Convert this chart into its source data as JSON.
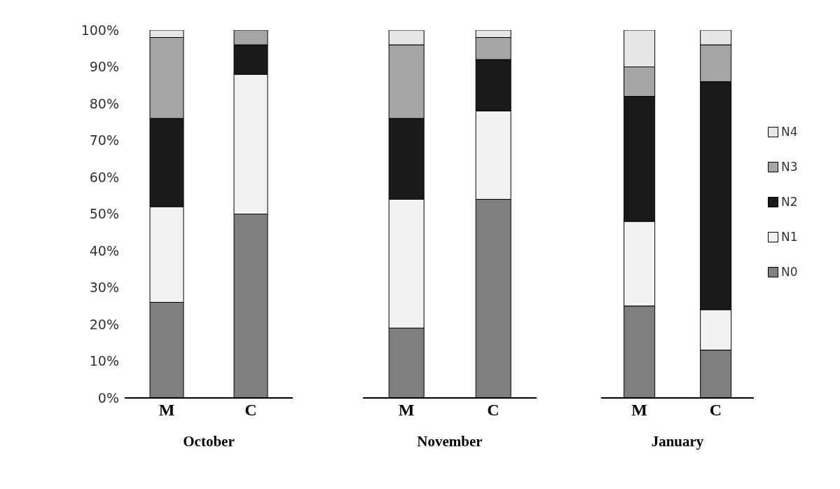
{
  "chart_data": [
    {
      "type": "bar",
      "stacked": true,
      "xlabel": "October",
      "categories": [
        "M",
        "C"
      ],
      "ylim": [
        0,
        100
      ],
      "yticks": [
        {
          "value": 0,
          "label": "0%"
        },
        {
          "value": 10,
          "label": "10%"
        },
        {
          "value": 20,
          "label": "20%"
        },
        {
          "value": 30,
          "label": "30%"
        },
        {
          "value": 40,
          "label": "40%"
        },
        {
          "value": 50,
          "label": "50%"
        },
        {
          "value": 60,
          "label": "60%"
        },
        {
          "value": 70,
          "label": "70%"
        },
        {
          "value": 80,
          "label": "80%"
        },
        {
          "value": 90,
          "label": "90%"
        },
        {
          "value": 100,
          "label": "100%"
        }
      ],
      "grid": false,
      "legend": false,
      "series": [
        {
          "color": "#7f7f7f",
          "values": [
            26,
            50
          ]
        },
        {
          "color": "#f2f2f2",
          "values": [
            26,
            38
          ]
        },
        {
          "color": "#1a1a1a",
          "values": [
            24,
            8
          ]
        },
        {
          "color": "#a6a6a6",
          "values": [
            22,
            4
          ]
        },
        {
          "color": "#e6e6e6",
          "values": [
            2,
            0
          ]
        }
      ]
    },
    {
      "type": "bar",
      "stacked": true,
      "xlabel": "November",
      "categories": [
        "M",
        "C"
      ],
      "ylim": [
        0,
        100
      ],
      "tick_labels": "x",
      "grid": false,
      "legend": false,
      "series": [
        {
          "color": "#7f7f7f",
          "values": [
            19,
            54
          ]
        },
        {
          "color": "#f2f2f2",
          "values": [
            35,
            24
          ]
        },
        {
          "color": "#1a1a1a",
          "values": [
            22,
            14
          ]
        },
        {
          "color": "#a6a6a6",
          "values": [
            20,
            6
          ]
        },
        {
          "color": "#e6e6e6",
          "values": [
            4,
            2
          ]
        }
      ]
    },
    {
      "type": "bar",
      "stacked": true,
      "xlabel": "January",
      "categories": [
        "M",
        "C"
      ],
      "ylim": [
        0,
        100
      ],
      "tick_labels": "x",
      "grid": false,
      "legend": "right",
      "series": [
        {
          "name": "N0",
          "color": "#7f7f7f",
          "values": [
            25,
            13
          ]
        },
        {
          "name": "N1",
          "color": "#f2f2f2",
          "values": [
            23,
            11
          ]
        },
        {
          "name": "N2",
          "color": "#1a1a1a",
          "values": [
            34,
            62
          ]
        },
        {
          "name": "N3",
          "color": "#a6a6a6",
          "values": [
            8,
            10
          ]
        },
        {
          "name": "N4",
          "color": "#e6e6e6",
          "values": [
            10,
            4
          ]
        }
      ]
    }
  ]
}
